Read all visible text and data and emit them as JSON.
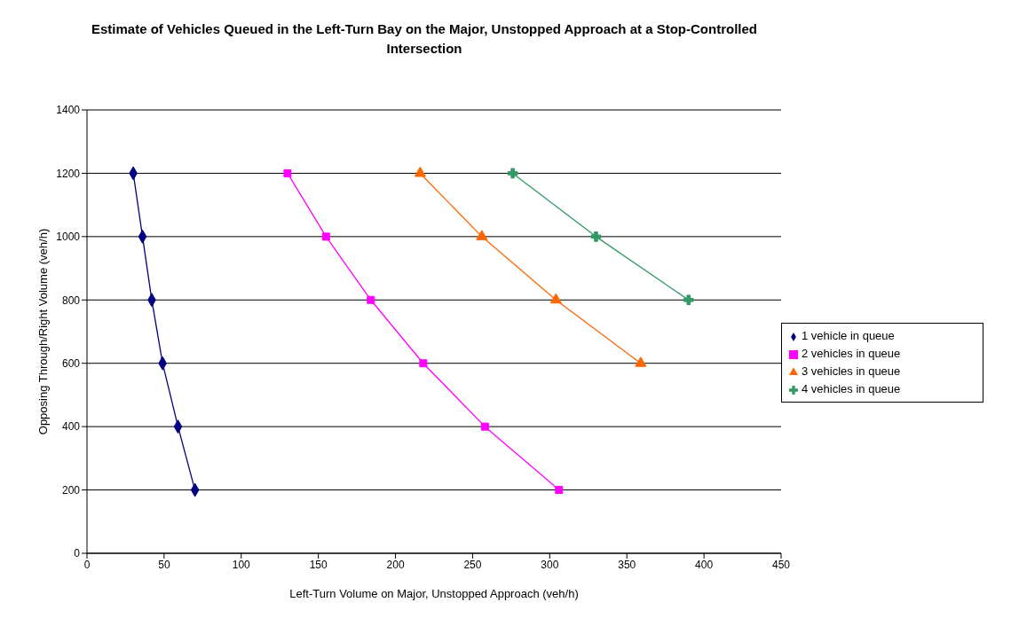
{
  "chart_data": {
    "type": "line",
    "title": "Estimate of Vehicles Queued in the Left-Turn Bay on the Major, Unstopped Approach at a Stop-Controlled Intersection",
    "xlabel": "Left-Turn Volume on Major, Unstopped Approach (veh/h)",
    "ylabel": "Opposing Through/Right Volume (veh/h)",
    "series": [
      {
        "name": "1 vehicle in queue",
        "color": "#000080",
        "marker": "diamond",
        "x": [
          30,
          36,
          42,
          49,
          59,
          70
        ],
        "values": [
          1200,
          1000,
          800,
          600,
          400,
          200
        ]
      },
      {
        "name": "2 vehicles in queue",
        "color": "#ff00ff",
        "marker": "square",
        "x": [
          130,
          155,
          184,
          218,
          258,
          306
        ],
        "values": [
          1200,
          1000,
          800,
          600,
          400,
          200
        ]
      },
      {
        "name": "3 vehicles in queue",
        "color": "#ff6600",
        "marker": "triangle",
        "x": [
          216,
          256,
          304,
          359
        ],
        "values": [
          1200,
          1000,
          800,
          600
        ]
      },
      {
        "name": "4 vehicles in queue",
        "color": "#339966",
        "marker": "cross",
        "x": [
          276,
          330,
          390
        ],
        "values": [
          1200,
          1000,
          800
        ]
      }
    ],
    "xlim": [
      0,
      450
    ],
    "xticks": [
      0,
      50,
      100,
      150,
      200,
      250,
      300,
      350,
      400,
      450
    ],
    "ylim": [
      0,
      1400
    ],
    "yticks": [
      0,
      200,
      400,
      600,
      800,
      1000,
      1200,
      1400
    ],
    "grid": "y",
    "legend": "right"
  }
}
